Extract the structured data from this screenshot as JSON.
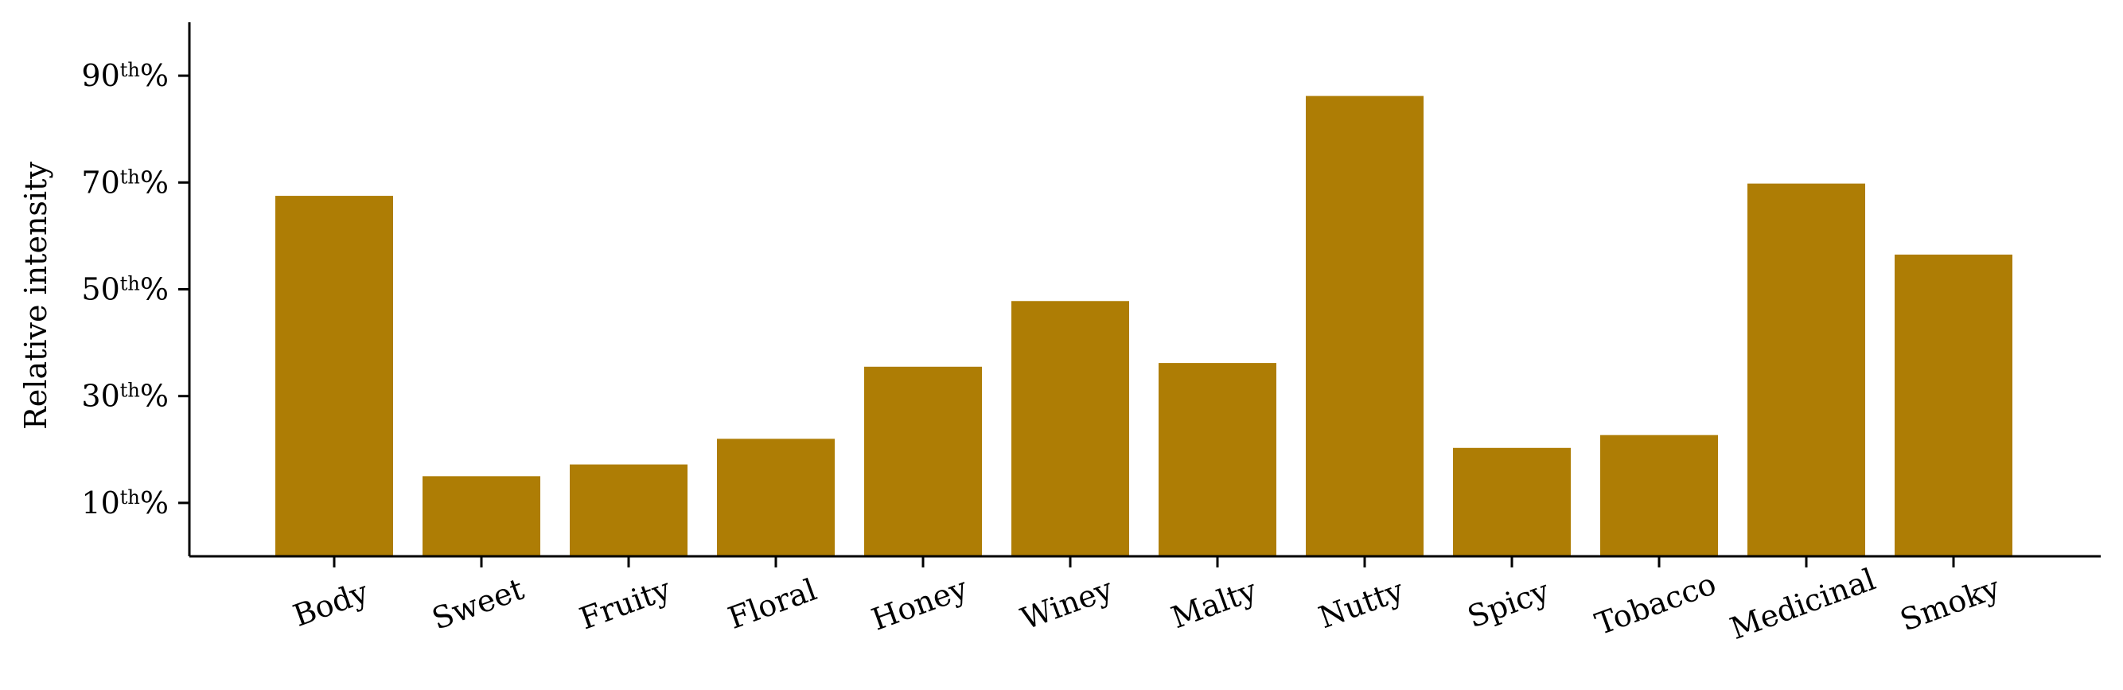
{
  "chart_data": {
    "type": "bar",
    "categories": [
      "Body",
      "Sweet",
      "Fruity",
      "Floral",
      "Honey",
      "Winey",
      "Malty",
      "Nutty",
      "Spicy",
      "Tobacco",
      "Medicinal",
      "Smoky"
    ],
    "values": [
      67.5,
      15.0,
      17.2,
      22.0,
      35.5,
      47.8,
      36.2,
      86.2,
      20.3,
      22.7,
      69.8,
      56.5
    ],
    "ylabel": "Relative intensity",
    "xlabel": "",
    "title": "",
    "ylim": [
      0,
      100
    ],
    "yticks": [
      {
        "value": 10,
        "number": "10",
        "sup": "th",
        "suffix": "%"
      },
      {
        "value": 30,
        "number": "30",
        "sup": "th",
        "suffix": "%"
      },
      {
        "value": 50,
        "number": "50",
        "sup": "th",
        "suffix": "%"
      },
      {
        "value": 70,
        "number": "70",
        "sup": "th",
        "suffix": "%"
      },
      {
        "value": 90,
        "number": "90",
        "sup": "th",
        "suffix": "%"
      }
    ],
    "bar_color": "#ae7d05",
    "axis_color": "#000000",
    "grid": false,
    "x_tick_rotation_deg": -20
  }
}
